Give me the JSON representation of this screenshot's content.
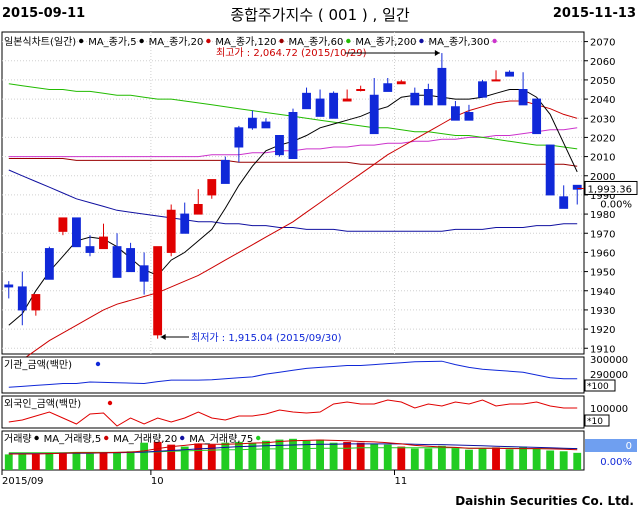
{
  "header": {
    "start_date": "2015-09-11",
    "title": "종합주가지수 ( 001 ) , 일간",
    "end_date": "2015-11-13"
  },
  "footer": {
    "brand": "Daishin Securities Co. Ltd."
  },
  "colors": {
    "up": "#e00000",
    "down": "#1028d8",
    "ma5": "#000000",
    "ma20": "#cc0000",
    "ma60": "#22bb00",
    "ma120": "#990000",
    "ma300": "#cc33cc",
    "ma200": "#1010a0",
    "vol_up": "#e00000",
    "vol_down": "#22cc22",
    "grid": "#d0d0d0"
  },
  "chart_data": {
    "type": "candlestick",
    "price_legend": [
      {
        "label": "일본식차트(일간)",
        "color": "#000000"
      },
      {
        "label": "MA_종가,5",
        "color": "#000000"
      },
      {
        "label": "MA_종가,20",
        "color": "#cc0000"
      },
      {
        "label": "MA_종가,120",
        "color": "#990000"
      },
      {
        "label": "MA_종가,60",
        "color": "#22bb00"
      },
      {
        "label": "MA_종가,200",
        "color": "#1010a0"
      },
      {
        "label": "MA_종가,300",
        "color": "#cc33cc"
      }
    ],
    "y_ticks": [
      2070,
      2060,
      2050,
      2040,
      2030,
      2020,
      2010,
      2000,
      1990,
      1980,
      1970,
      1960,
      1950,
      1940,
      1930,
      1920,
      1910
    ],
    "ylim": [
      1907,
      2075
    ],
    "current_price": "1,993.36",
    "current_change": "0.00%",
    "annotations": {
      "high": "최고가 : 2,064.72 (2015/10/29)",
      "low": "최저가 : 1,915.04 (2015/09/30)"
    },
    "x_labels": [
      "2015/09",
      "10",
      "11"
    ],
    "candles": [
      [
        1943,
        1945,
        1936,
        1942
      ],
      [
        1942,
        1950,
        1922,
        1930
      ],
      [
        1930,
        1937,
        1927,
        1938
      ],
      [
        1962,
        1963,
        1948,
        1946
      ],
      [
        1971,
        1976,
        1969,
        1978
      ],
      [
        1978,
        1978,
        1968,
        1963
      ],
      [
        1963,
        1969,
        1958,
        1960
      ],
      [
        1962,
        1975,
        1974,
        1968
      ],
      [
        1963,
        1970,
        1951,
        1947
      ],
      [
        1962,
        1965,
        1954,
        1950
      ],
      [
        1953,
        1960,
        1938,
        1945
      ],
      [
        1917,
        1963,
        1915,
        1963
      ],
      [
        1960,
        1985,
        1958,
        1982
      ],
      [
        1980,
        1986,
        1972,
        1970
      ],
      [
        1980,
        1993,
        1982,
        1985
      ],
      [
        1990,
        1995,
        1988,
        1998
      ],
      [
        2008,
        2010,
        1998,
        1996
      ],
      [
        2025,
        2026,
        2007,
        2015
      ],
      [
        2030,
        2034,
        2024,
        2025
      ],
      [
        2028,
        2030,
        2028,
        2025
      ],
      [
        2021,
        2015,
        2010,
        2011
      ],
      [
        2033,
        2035,
        2010,
        2009
      ],
      [
        2043,
        2046,
        2038,
        2035
      ],
      [
        2040,
        2045,
        2038,
        2031
      ],
      [
        2043,
        2044,
        2040,
        2030
      ],
      [
        2039,
        2045,
        2042,
        2040
      ],
      [
        2045,
        2047,
        2044,
        2045
      ],
      [
        2042,
        2051,
        2037,
        2022
      ],
      [
        2048,
        2051,
        2046,
        2044
      ],
      [
        2048,
        2050,
        2048,
        2049
      ],
      [
        2043,
        2046,
        2041,
        2037
      ],
      [
        2045,
        2048,
        2047,
        2037
      ],
      [
        2056,
        2064,
        2059,
        2037
      ],
      [
        2036,
        2039,
        2036,
        2029
      ],
      [
        2033,
        2037,
        2036,
        2029
      ],
      [
        2049,
        2050,
        2048,
        2041
      ],
      [
        2050,
        2055,
        2054,
        2050
      ],
      [
        2054,
        2055,
        2053,
        2052
      ],
      [
        2045,
        2054,
        2047,
        2037
      ],
      [
        2040,
        2040,
        2035,
        2022
      ],
      [
        2016,
        2011,
        2013,
        1990
      ],
      [
        1989,
        1995,
        1996,
        1983
      ],
      [
        1995,
        1995,
        1985,
        1993
      ]
    ],
    "ma5": [
      1922,
      1928,
      1940,
      1950,
      1958,
      1966,
      1968,
      1967,
      1963,
      1957,
      1951,
      1948,
      1956,
      1960,
      1966,
      1972,
      1983,
      1995,
      2005,
      2013,
      2016,
      2018,
      2021,
      2025,
      2027,
      2029,
      2031,
      2034,
      2036,
      2041,
      2042,
      2042,
      2041,
      2040,
      2040,
      2041,
      2043,
      2045,
      2045,
      2041,
      2032,
      2017,
      2002
    ],
    "ma20": [
      1900,
      1904,
      1909,
      1914,
      1918,
      1922,
      1926,
      1930,
      1933,
      1935,
      1937,
      1939,
      1942,
      1945,
      1948,
      1952,
      1956,
      1960,
      1964,
      1968,
      1972,
      1976,
      1981,
      1986,
      1991,
      1996,
      2001,
      2006,
      2011,
      2015,
      2019,
      2023,
      2027,
      2031,
      2034,
      2036,
      2038,
      2039,
      2039,
      2037,
      2035,
      2032,
      2030
    ],
    "ma60": [
      2048,
      2047,
      2046,
      2045,
      2045,
      2044,
      2044,
      2043,
      2042,
      2042,
      2041,
      2040,
      2040,
      2039,
      2038,
      2037,
      2036,
      2035,
      2034,
      2033,
      2032,
      2031,
      2030,
      2029,
      2028,
      2027,
      2026,
      2025,
      2025,
      2024,
      2023,
      2023,
      2022,
      2021,
      2021,
      2020,
      2019,
      2018,
      2017,
      2016,
      2016,
      2015,
      2014
    ],
    "ma120": [
      2009,
      2009,
      2009,
      2009,
      2009,
      2008,
      2008,
      2008,
      2008,
      2008,
      2008,
      2008,
      2008,
      2008,
      2008,
      2008,
      2008,
      2007,
      2007,
      2007,
      2007,
      2007,
      2007,
      2007,
      2007,
      2007,
      2006,
      2006,
      2006,
      2006,
      2006,
      2006,
      2006,
      2006,
      2006,
      2006,
      2006,
      2006,
      2006,
      2006,
      2006,
      2006,
      2005
    ],
    "ma300": [
      2010,
      2010,
      2010,
      2010,
      2010,
      2010,
      2010,
      2010,
      2010,
      2010,
      2010,
      2010,
      2010,
      2010,
      2010,
      2011,
      2011,
      2011,
      2012,
      2012,
      2013,
      2013,
      2014,
      2014,
      2015,
      2015,
      2016,
      2016,
      2017,
      2017,
      2018,
      2018,
      2019,
      2019,
      2020,
      2020,
      2021,
      2021,
      2022,
      2023,
      2024,
      2024,
      2025
    ],
    "ma200": [
      2003,
      2000,
      1997,
      1994,
      1991,
      1988,
      1986,
      1984,
      1982,
      1981,
      1980,
      1979,
      1978,
      1977,
      1976,
      1976,
      1975,
      1975,
      1974,
      1974,
      1973,
      1973,
      1972,
      1972,
      1972,
      1971,
      1971,
      1971,
      1971,
      1971,
      1971,
      1971,
      1971,
      1972,
      1972,
      1972,
      1973,
      1973,
      1973,
      1974,
      1974,
      1975,
      1975
    ],
    "inst": {
      "legend": "기관_금액(백만)",
      "y_ticks": [
        "300000",
        "290000"
      ],
      "unit": "*100",
      "values": [
        286000,
        286500,
        287000,
        287500,
        288000,
        288000,
        288800,
        288600,
        288400,
        288200,
        288000,
        289000,
        289800,
        289800,
        289800,
        290000,
        290500,
        291000,
        291500,
        293000,
        294000,
        295000,
        296000,
        296500,
        297000,
        297500,
        297500,
        298000,
        298500,
        299000,
        299500,
        299600,
        299800,
        298000,
        296500,
        295500,
        295000,
        294500,
        294000,
        292500,
        291000,
        290500,
        290500
      ]
    },
    "foreign": {
      "legend": "외국인_금액(백만)",
      "y_ticks": [
        "100000"
      ],
      "unit": "*10",
      "values": [
        30000,
        40000,
        60000,
        80000,
        50000,
        20000,
        70000,
        75000,
        10000,
        50000,
        20000,
        50000,
        30000,
        50000,
        80000,
        50000,
        40000,
        60000,
        60000,
        70000,
        90000,
        80000,
        75000,
        80000,
        120000,
        130000,
        120000,
        120000,
        140000,
        130000,
        100000,
        120000,
        110000,
        130000,
        120000,
        140000,
        110000,
        120000,
        120000,
        130000,
        110000,
        100000,
        100000
      ]
    },
    "volume": {
      "legend": [
        {
          "label": "거래량",
          "color": "#000000"
        },
        {
          "label": "MA_거래량,5",
          "color": "#cc0000"
        },
        {
          "label": "MA_거래량,20",
          "color": "#1010a0"
        },
        {
          "label": "MA_거래량,75",
          "color": "#22cc22"
        }
      ],
      "last_value": "0",
      "last_change": "0.00%",
      "values": [
        40,
        42,
        40,
        45,
        45,
        45,
        42,
        45,
        44,
        48,
        70,
        72,
        65,
        60,
        68,
        65,
        70,
        72,
        70,
        75,
        78,
        80,
        75,
        78,
        70,
        72,
        70,
        68,
        65,
        60,
        55,
        55,
        62,
        56,
        52,
        55,
        58,
        53,
        60,
        54,
        50,
        48,
        44
      ],
      "ma5": [
        41,
        41,
        41,
        42,
        43,
        44,
        44,
        44,
        45,
        46,
        49,
        55,
        60,
        63,
        67,
        66,
        66,
        67,
        69,
        70,
        73,
        75,
        76,
        77,
        76,
        75,
        73,
        72,
        70,
        67,
        63,
        61,
        59,
        58,
        56,
        56,
        56,
        55,
        55,
        55,
        54,
        53,
        52
      ],
      "ma20": [
        42,
        42,
        42,
        42,
        43,
        43,
        43,
        44,
        44,
        45,
        46,
        48,
        50,
        52,
        54,
        56,
        58,
        60,
        61,
        62,
        63,
        64,
        65,
        66,
        66,
        67,
        67,
        67,
        67,
        67,
        66,
        65,
        65,
        64,
        63,
        62,
        61,
        60,
        59,
        58,
        57,
        56,
        55
      ],
      "ma75": [
        44,
        44,
        44,
        44,
        44,
        45,
        45,
        45,
        45,
        46,
        46,
        47,
        48,
        49,
        50,
        51,
        52,
        52,
        53,
        54,
        54,
        55,
        55,
        56,
        56,
        56,
        57,
        57,
        57,
        57,
        57,
        57,
        57,
        57,
        56,
        56,
        56,
        56,
        55,
        55,
        55,
        55,
        55
      ]
    }
  }
}
